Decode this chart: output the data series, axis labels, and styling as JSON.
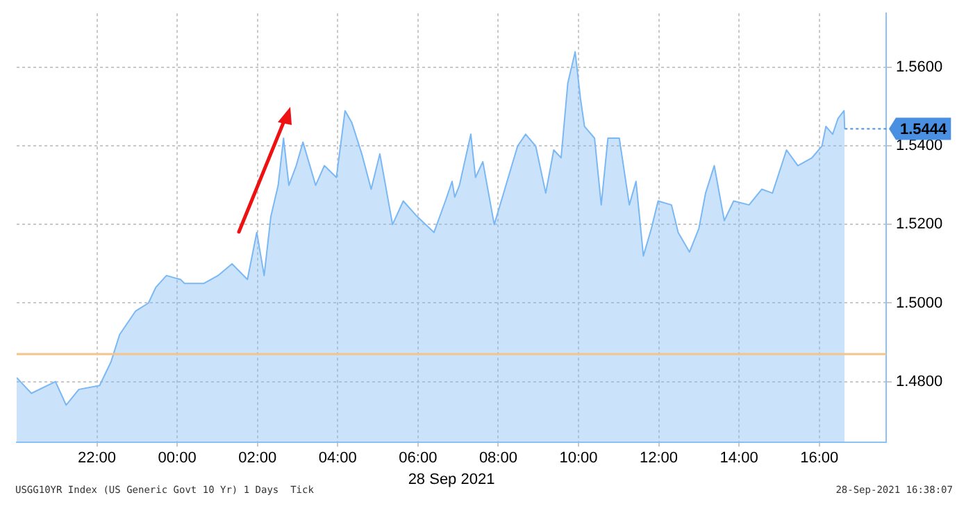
{
  "chart_data": {
    "type": "area",
    "xlabel": "28 Sep 2021",
    "x": [
      "2021-09-27T20:00",
      "2021-09-27T20:22",
      "2021-09-27T20:58",
      "2021-09-27T21:14",
      "2021-09-27T21:33",
      "2021-09-27T22:04",
      "2021-09-27T22:21",
      "2021-09-27T22:34",
      "2021-09-27T22:58",
      "2021-09-27T23:17",
      "2021-09-27T23:28",
      "2021-09-27T23:44",
      "2021-09-28T00:05",
      "2021-09-28T00:11",
      "2021-09-28T00:40",
      "2021-09-28T01:01",
      "2021-09-28T01:22",
      "2021-09-28T01:45",
      "2021-09-28T01:59",
      "2021-09-28T02:10",
      "2021-09-28T02:20",
      "2021-09-28T02:31",
      "2021-09-28T02:39",
      "2021-09-28T02:47",
      "2021-09-28T02:58",
      "2021-09-28T03:08",
      "2021-09-28T03:27",
      "2021-09-28T03:40",
      "2021-09-28T03:58",
      "2021-09-28T04:11",
      "2021-09-28T04:21",
      "2021-09-28T04:36",
      "2021-09-28T04:50",
      "2021-09-28T05:03",
      "2021-09-28T05:22",
      "2021-09-28T05:38",
      "2021-09-28T05:59",
      "2021-09-28T06:24",
      "2021-09-28T06:41",
      "2021-09-28T06:51",
      "2021-09-28T06:55",
      "2021-09-28T07:02",
      "2021-09-28T07:19",
      "2021-09-28T07:26",
      "2021-09-28T07:37",
      "2021-09-28T07:54",
      "2021-09-28T08:08",
      "2021-09-28T08:29",
      "2021-09-28T08:41",
      "2021-09-28T08:56",
      "2021-09-28T09:11",
      "2021-09-28T09:23",
      "2021-09-28T09:34",
      "2021-09-28T09:44",
      "2021-09-28T09:55",
      "2021-09-28T10:03",
      "2021-09-28T10:09",
      "2021-09-28T10:24",
      "2021-09-28T10:34",
      "2021-09-28T10:44",
      "2021-09-28T11:01",
      "2021-09-28T11:16",
      "2021-09-28T11:26",
      "2021-09-28T11:37",
      "2021-09-28T11:49",
      "2021-09-28T11:59",
      "2021-09-28T12:19",
      "2021-09-28T12:29",
      "2021-09-28T12:46",
      "2021-09-28T13:00",
      "2021-09-28T13:10",
      "2021-09-28T13:23",
      "2021-09-28T13:38",
      "2021-09-28T13:52",
      "2021-09-28T14:15",
      "2021-09-28T14:34",
      "2021-09-28T14:50",
      "2021-09-28T15:11",
      "2021-09-28T15:28",
      "2021-09-28T15:49",
      "2021-09-28T16:04",
      "2021-09-28T16:10",
      "2021-09-28T16:20",
      "2021-09-28T16:28",
      "2021-09-28T16:37",
      "2021-09-28T16:38"
    ],
    "series": [
      {
        "color": "#7ab8f5",
        "values": [
          1.481,
          1.477,
          1.48,
          1.474,
          1.478,
          1.479,
          1.485,
          1.492,
          1.498,
          1.5,
          1.504,
          1.507,
          1.506,
          1.505,
          1.505,
          1.507,
          1.51,
          1.506,
          1.518,
          1.507,
          1.522,
          1.53,
          1.542,
          1.53,
          1.535,
          1.541,
          1.53,
          1.535,
          1.532,
          1.549,
          1.546,
          1.538,
          1.529,
          1.538,
          1.52,
          1.526,
          1.522,
          1.518,
          1.526,
          1.531,
          1.527,
          1.53,
          1.543,
          1.532,
          1.536,
          1.52,
          1.528,
          1.54,
          1.543,
          1.54,
          1.528,
          1.539,
          1.537,
          1.556,
          1.564,
          1.552,
          1.545,
          1.542,
          1.525,
          1.542,
          1.542,
          1.525,
          1.531,
          1.512,
          1.519,
          1.526,
          1.525,
          1.518,
          1.513,
          1.519,
          1.528,
          1.535,
          1.521,
          1.526,
          1.525,
          1.529,
          1.528,
          1.539,
          1.535,
          1.537,
          1.54,
          1.545,
          1.543,
          1.547,
          1.549,
          1.5444
        ]
      }
    ],
    "xlim": [
      "2021-09-27T20:00",
      "2021-09-28T17:40"
    ],
    "xticks": [
      {
        "value": "2021-09-27T22:00",
        "label": "22:00"
      },
      {
        "value": "2021-09-28T00:00",
        "label": "00:00"
      },
      {
        "value": "2021-09-28T02:00",
        "label": "02:00"
      },
      {
        "value": "2021-09-28T04:00",
        "label": "04:00"
      },
      {
        "value": "2021-09-28T06:00",
        "label": "06:00"
      },
      {
        "value": "2021-09-28T08:00",
        "label": "08:00"
      },
      {
        "value": "2021-09-28T10:00",
        "label": "10:00"
      },
      {
        "value": "2021-09-28T12:00",
        "label": "12:00"
      },
      {
        "value": "2021-09-28T14:00",
        "label": "14:00"
      },
      {
        "value": "2021-09-28T16:00",
        "label": "16:00"
      }
    ],
    "ylim": [
      1.4645,
      1.5738
    ],
    "yticks": [
      {
        "value": 1.48,
        "label": "1.4800"
      },
      {
        "value": 1.5,
        "label": "1.5000"
      },
      {
        "value": 1.52,
        "label": "1.5200"
      },
      {
        "value": 1.54,
        "label": "1.5400"
      },
      {
        "value": 1.56,
        "label": "1.5600"
      }
    ],
    "ref_lines": [
      {
        "axis": "y",
        "value": 1.487,
        "color": "#f4c48a"
      }
    ],
    "grid": true,
    "annotations": [
      "USGG10YR Index (US Generic Govt 10 Yr) 1 Days  Tick",
      "28-Sep-2021 16:38:07",
      {
        "text": "1.5444",
        "x": "2021-09-28T16:38",
        "y": 1.5444
      }
    ]
  }
}
